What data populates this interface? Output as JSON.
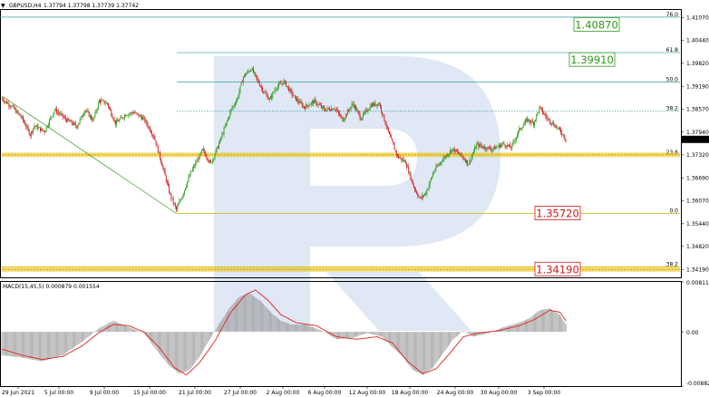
{
  "header": {
    "symbol": "GBPUSD,H4",
    "ohlc": "1.37794 1.37798 1.37739 1.37742"
  },
  "macd_label": "MACD(15,45,5) 0.000879 0.001554",
  "colors": {
    "bull": "#2e9a1a",
    "bear": "#d01818",
    "fib_line": "#3aa0a0",
    "level_band": "#f2c200",
    "trend": "#2e9a1a",
    "signal": "#e02020",
    "hist": "#9a9a9a",
    "watermark": "#dfe8f4"
  },
  "chart_data": {
    "type": "candlestick",
    "ylim": [
      1.33975,
      1.41275
    ],
    "price_ticks": [
      "1.41070",
      "1.40440",
      "1.39820",
      "1.39190",
      "1.38570",
      "1.37940",
      "1.37320",
      "1.36690",
      "1.36070",
      "1.35440",
      "1.34820",
      "1.34190"
    ],
    "date_labels": [
      "29 Jun 2021",
      "5 Jul 00:00",
      "9 Jul 00:00",
      "15 Jul 00:00",
      "21 Jul 00:00",
      "27 Jul 00:00",
      "2 Aug 00:00",
      "6 Aug 00:00",
      "12 Aug 00:00",
      "18 Aug 00:00",
      "24 Aug 00:00",
      "30 Aug 00:00",
      "3 Sep 00:00"
    ],
    "current_price": "1.37742",
    "fib_levels": [
      {
        "label": "76.0",
        "price": 1.4108
      },
      {
        "label": "61.8",
        "price": 1.4011
      },
      {
        "label": "50.0",
        "price": 1.3931
      },
      {
        "label": "38.2",
        "price": 1.3851
      },
      {
        "label": "23.6",
        "price": 1.3732
      },
      {
        "label": "0.0",
        "price": 1.3572
      },
      {
        "label": "38.2",
        "price": 1.3426
      }
    ],
    "highlight_levels": [
      {
        "price": 1.3732,
        "style": "band"
      },
      {
        "price": 1.3419,
        "style": "band"
      }
    ],
    "targets": [
      {
        "text": "1.40870",
        "price": 1.4087,
        "kind": "up"
      },
      {
        "text": "1.39910",
        "price": 1.3991,
        "kind": "up"
      },
      {
        "text": "1.35720",
        "price": 1.3572,
        "kind": "down"
      },
      {
        "text": "1.34190",
        "price": 1.3419,
        "kind": "down"
      }
    ],
    "trendline": {
      "from": [
        1.3893,
        0
      ],
      "to": [
        1.3572,
        1
      ]
    },
    "path": [
      [
        0,
        1.3885
      ],
      [
        10,
        1.3864
      ],
      [
        20,
        1.3832
      ],
      [
        28,
        1.3787
      ],
      [
        32,
        1.3811
      ],
      [
        42,
        1.3796
      ],
      [
        52,
        1.3855
      ],
      [
        58,
        1.3842
      ],
      [
        62,
        1.3831
      ],
      [
        74,
        1.381
      ],
      [
        82,
        1.3855
      ],
      [
        90,
        1.3826
      ],
      [
        96,
        1.388
      ],
      [
        104,
        1.3872
      ],
      [
        112,
        1.3818
      ],
      [
        122,
        1.3842
      ],
      [
        130,
        1.3848
      ],
      [
        140,
        1.383
      ],
      [
        150,
        1.3782
      ],
      [
        158,
        1.3705
      ],
      [
        166,
        1.3622
      ],
      [
        172,
        1.3582
      ],
      [
        178,
        1.3622
      ],
      [
        186,
        1.3682
      ],
      [
        198,
        1.3745
      ],
      [
        206,
        1.3708
      ],
      [
        214,
        1.3762
      ],
      [
        226,
        1.3855
      ],
      [
        232,
        1.3885
      ],
      [
        238,
        1.3945
      ],
      [
        246,
        1.3968
      ],
      [
        252,
        1.3935
      ],
      [
        258,
        1.3905
      ],
      [
        264,
        1.3882
      ],
      [
        270,
        1.3915
      ],
      [
        278,
        1.3932
      ],
      [
        288,
        1.389
      ],
      [
        298,
        1.3862
      ],
      [
        308,
        1.3878
      ],
      [
        318,
        1.3855
      ],
      [
        328,
        1.386
      ],
      [
        336,
        1.3828
      ],
      [
        346,
        1.3872
      ],
      [
        354,
        1.3832
      ],
      [
        364,
        1.3868
      ],
      [
        372,
        1.3872
      ],
      [
        382,
        1.3785
      ],
      [
        390,
        1.3728
      ],
      [
        398,
        1.3712
      ],
      [
        406,
        1.3645
      ],
      [
        412,
        1.3612
      ],
      [
        418,
        1.3628
      ],
      [
        426,
        1.3688
      ],
      [
        434,
        1.3718
      ],
      [
        444,
        1.3748
      ],
      [
        452,
        1.3732
      ],
      [
        460,
        1.3708
      ],
      [
        468,
        1.376
      ],
      [
        476,
        1.3752
      ],
      [
        484,
        1.3748
      ],
      [
        494,
        1.3762
      ],
      [
        502,
        1.3752
      ],
      [
        510,
        1.38
      ],
      [
        518,
        1.3828
      ],
      [
        524,
        1.3818
      ],
      [
        530,
        1.386
      ],
      [
        538,
        1.383
      ],
      [
        546,
        1.381
      ],
      [
        552,
        1.3792
      ],
      [
        556,
        1.3774
      ]
    ],
    "macd": {
      "ylim": [
        -0.008822,
        0.008116
      ],
      "ticks": [
        "0.008116",
        "0.00",
        "-0.008822"
      ],
      "hist_path": [
        [
          0,
          -0.0038
        ],
        [
          20,
          -0.0042
        ],
        [
          40,
          -0.0048
        ],
        [
          60,
          -0.0038
        ],
        [
          80,
          -0.0015
        ],
        [
          95,
          0.0005
        ],
        [
          110,
          0.0018
        ],
        [
          125,
          0.0008
        ],
        [
          140,
          -0.0002
        ],
        [
          155,
          -0.0035
        ],
        [
          165,
          -0.0055
        ],
        [
          175,
          -0.0068
        ],
        [
          185,
          -0.0062
        ],
        [
          195,
          -0.004
        ],
        [
          205,
          -0.0012
        ],
        [
          215,
          0.0015
        ],
        [
          225,
          0.004
        ],
        [
          235,
          0.0058
        ],
        [
          245,
          0.0062
        ],
        [
          255,
          0.005
        ],
        [
          265,
          0.0032
        ],
        [
          275,
          0.0018
        ],
        [
          285,
          0.0012
        ],
        [
          300,
          0.0012
        ],
        [
          315,
          0.0002
        ],
        [
          330,
          -0.0012
        ],
        [
          345,
          -0.001
        ],
        [
          360,
          -0.0002
        ],
        [
          375,
          -0.0008
        ],
        [
          385,
          -0.0025
        ],
        [
          395,
          -0.004
        ],
        [
          405,
          -0.0062
        ],
        [
          415,
          -0.007
        ],
        [
          425,
          -0.0058
        ],
        [
          435,
          -0.0035
        ],
        [
          445,
          -0.0012
        ],
        [
          455,
          0.0002
        ],
        [
          465,
          -0.0008
        ],
        [
          480,
          -0.0002
        ],
        [
          495,
          0.0008
        ],
        [
          510,
          0.0015
        ],
        [
          520,
          0.0022
        ],
        [
          530,
          0.0035
        ],
        [
          540,
          0.0038
        ],
        [
          550,
          0.0028
        ],
        [
          556,
          0.0012
        ]
      ],
      "signal_path": [
        [
          0,
          -0.0028
        ],
        [
          20,
          -0.0038
        ],
        [
          40,
          -0.0045
        ],
        [
          60,
          -0.004
        ],
        [
          80,
          -0.0022
        ],
        [
          95,
          -0.0002
        ],
        [
          110,
          0.0012
        ],
        [
          125,
          0.001
        ],
        [
          140,
          0.0
        ],
        [
          155,
          -0.0025
        ],
        [
          170,
          -0.0058
        ],
        [
          182,
          -0.007
        ],
        [
          195,
          -0.005
        ],
        [
          210,
          -0.0015
        ],
        [
          225,
          0.003
        ],
        [
          240,
          0.006
        ],
        [
          250,
          0.0068
        ],
        [
          262,
          0.0052
        ],
        [
          275,
          0.0028
        ],
        [
          290,
          0.0015
        ],
        [
          310,
          0.001
        ],
        [
          330,
          -0.0008
        ],
        [
          350,
          -0.0012
        ],
        [
          370,
          -0.0008
        ],
        [
          385,
          -0.0018
        ],
        [
          400,
          -0.0048
        ],
        [
          415,
          -0.0068
        ],
        [
          428,
          -0.006
        ],
        [
          440,
          -0.0038
        ],
        [
          455,
          -0.0008
        ],
        [
          470,
          -0.0002
        ],
        [
          490,
          0.0002
        ],
        [
          510,
          0.001
        ],
        [
          525,
          0.002
        ],
        [
          540,
          0.0035
        ],
        [
          550,
          0.0032
        ],
        [
          556,
          0.0018
        ]
      ]
    }
  }
}
